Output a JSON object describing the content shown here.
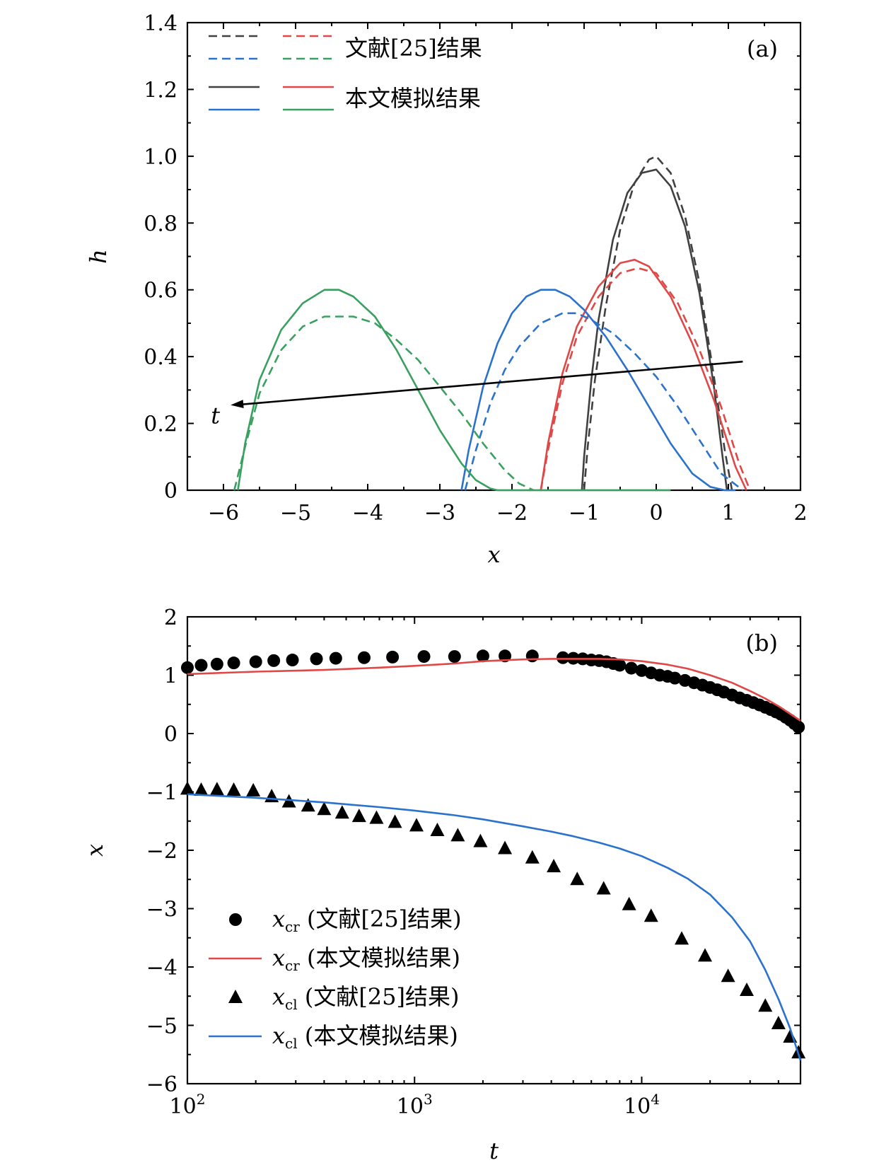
{
  "chart_data": [
    {
      "type": "line",
      "panel_label": "(a)",
      "xlabel": "x",
      "ylabel": "h",
      "xlim": [
        -6.5,
        2
      ],
      "ylim": [
        0,
        1.4
      ],
      "xticks": [
        -6,
        -5,
        -4,
        -3,
        -2,
        -1,
        0,
        1,
        2
      ],
      "xtick_labels": [
        "−6",
        "−5",
        "−4",
        "−3",
        "−2",
        "−1",
        "0",
        "1",
        "2"
      ],
      "yticks": [
        0,
        0.2,
        0.4,
        0.6,
        0.8,
        1.0,
        1.2,
        1.4
      ],
      "ytick_labels": [
        "0",
        "0.2",
        "0.4",
        "0.6",
        "0.8",
        "1.0",
        "1.2",
        "1.4"
      ],
      "legend": {
        "placement": "top-left",
        "ref_label": "文献[25]结果",
        "sim_label": "本文模拟结果"
      },
      "colors": {
        "black": "#404040",
        "red": "#e04848",
        "blue": "#2a72cc",
        "green": "#3aa060"
      },
      "series": [
        {
          "color": "black",
          "style": "solid",
          "x": [
            -1.03,
            -1.0,
            -0.9,
            -0.8,
            -0.6,
            -0.4,
            -0.2,
            0.0,
            0.2,
            0.4,
            0.6,
            0.8,
            0.92,
            0.98
          ],
          "y": [
            0,
            0.1,
            0.33,
            0.51,
            0.75,
            0.89,
            0.95,
            0.96,
            0.91,
            0.79,
            0.59,
            0.31,
            0.1,
            0
          ]
        },
        {
          "color": "black",
          "style": "dashed",
          "x": [
            -1.0,
            -0.95,
            -0.85,
            -0.7,
            -0.5,
            -0.3,
            -0.1,
            0.0,
            0.2,
            0.4,
            0.6,
            0.8,
            0.95,
            1.05
          ],
          "y": [
            0,
            0.13,
            0.33,
            0.55,
            0.78,
            0.92,
            0.99,
            1.0,
            0.95,
            0.82,
            0.62,
            0.34,
            0.12,
            0
          ]
        },
        {
          "color": "red",
          "style": "solid",
          "x": [
            -1.6,
            -1.5,
            -1.3,
            -1.1,
            -0.8,
            -0.5,
            -0.3,
            -0.1,
            0.2,
            0.5,
            0.8,
            1.1,
            1.25
          ],
          "y": [
            0,
            0.14,
            0.35,
            0.49,
            0.61,
            0.68,
            0.69,
            0.67,
            0.58,
            0.44,
            0.27,
            0.07,
            0
          ]
        },
        {
          "color": "red",
          "style": "dashed",
          "x": [
            -1.6,
            -1.5,
            -1.3,
            -1.1,
            -0.8,
            -0.5,
            -0.25,
            0.0,
            0.3,
            0.6,
            0.9,
            1.15,
            1.3
          ],
          "y": [
            0,
            0.12,
            0.32,
            0.46,
            0.58,
            0.65,
            0.665,
            0.65,
            0.56,
            0.42,
            0.25,
            0.08,
            0
          ]
        },
        {
          "color": "blue",
          "style": "solid",
          "x": [
            -2.7,
            -2.6,
            -2.4,
            -2.2,
            -2.0,
            -1.8,
            -1.6,
            -1.4,
            -1.2,
            -1.0,
            -0.7,
            -0.4,
            -0.1,
            0.2,
            0.5,
            0.75,
            0.95,
            1.1
          ],
          "y": [
            0,
            0.12,
            0.31,
            0.44,
            0.53,
            0.58,
            0.6,
            0.6,
            0.58,
            0.54,
            0.46,
            0.36,
            0.25,
            0.14,
            0.05,
            0.01,
            0,
            0
          ]
        },
        {
          "color": "blue",
          "style": "dashed",
          "x": [
            -2.65,
            -2.5,
            -2.3,
            -2.1,
            -1.9,
            -1.6,
            -1.3,
            -1.1,
            -0.9,
            -0.6,
            -0.3,
            0.0,
            0.3,
            0.6,
            0.9,
            1.2
          ],
          "y": [
            0,
            0.12,
            0.26,
            0.36,
            0.43,
            0.5,
            0.53,
            0.53,
            0.51,
            0.47,
            0.41,
            0.34,
            0.25,
            0.15,
            0.05,
            0
          ]
        },
        {
          "color": "green",
          "style": "solid",
          "x": [
            -5.8,
            -5.7,
            -5.5,
            -5.2,
            -4.9,
            -4.6,
            -4.4,
            -4.2,
            -3.9,
            -3.6,
            -3.3,
            -3.0,
            -2.7,
            -2.5,
            -2.3,
            -2.2,
            -1.5,
            -0.5,
            0.2
          ],
          "y": [
            0,
            0.14,
            0.33,
            0.48,
            0.56,
            0.6,
            0.6,
            0.58,
            0.52,
            0.42,
            0.3,
            0.18,
            0.08,
            0.03,
            0.005,
            0,
            0,
            0,
            0
          ]
        },
        {
          "color": "green",
          "style": "dashed",
          "x": [
            -5.85,
            -5.7,
            -5.5,
            -5.2,
            -4.9,
            -4.6,
            -4.2,
            -3.9,
            -3.6,
            -3.3,
            -3.0,
            -2.7,
            -2.4,
            -2.1,
            -1.9,
            -1.7
          ],
          "y": [
            0,
            0.13,
            0.29,
            0.42,
            0.49,
            0.52,
            0.52,
            0.5,
            0.45,
            0.39,
            0.31,
            0.23,
            0.14,
            0.06,
            0.02,
            0
          ]
        }
      ],
      "annotation": {
        "text": "t",
        "arrow_from": [
          1.2,
          0.385
        ],
        "arrow_to": [
          -5.9,
          0.255
        ]
      }
    },
    {
      "type": "scatter",
      "panel_label": "(b)",
      "xlabel": "t",
      "ylabel": "x",
      "xscale": "log",
      "xlim": [
        100,
        50000
      ],
      "ylim": [
        -6,
        2
      ],
      "xticks": [
        100,
        1000,
        10000
      ],
      "xtick_labels": [
        {
          "base": "10",
          "exp": "2"
        },
        {
          "base": "10",
          "exp": "3"
        },
        {
          "base": "10",
          "exp": "4"
        }
      ],
      "yticks": [
        -6,
        -5,
        -4,
        -3,
        -2,
        -1,
        0,
        1,
        2
      ],
      "ytick_labels": [
        "−6",
        "−5",
        "−4",
        "−3",
        "−2",
        "−1",
        "0",
        "1",
        "2"
      ],
      "legend": {
        "placement": "bottom-left",
        "entries": [
          {
            "var": "x",
            "sub": "cr",
            "text": "(文献[25]结果)",
            "marker": "circle"
          },
          {
            "var": "x",
            "sub": "cr",
            "text": "(本文模拟结果)",
            "marker": "line-red"
          },
          {
            "var": "x",
            "sub": "cl",
            "text": "(文献[25]结果)",
            "marker": "triangle"
          },
          {
            "var": "x",
            "sub": "cl",
            "text": "(本文模拟结果)",
            "marker": "line-blue"
          }
        ]
      },
      "colors": {
        "red": "#e04848",
        "blue": "#2a72cc",
        "marker": "#000000"
      },
      "series": [
        {
          "name": "xcr-ref",
          "style": "circle",
          "t": [
            100,
            115,
            135,
            160,
            200,
            240,
            290,
            370,
            450,
            600,
            800,
            1100,
            1500,
            2000,
            2500,
            3300,
            4500,
            5000,
            5500,
            6000,
            6500,
            7000,
            7500,
            8000,
            9000,
            10000,
            11000,
            12000,
            13000,
            14000,
            15500,
            17000,
            18500,
            20000,
            21500,
            23000,
            25000,
            27000,
            29000,
            31000,
            33000,
            35000,
            37000,
            39000,
            41000,
            43000,
            45000,
            47000,
            49000
          ],
          "x": [
            1.13,
            1.17,
            1.19,
            1.21,
            1.23,
            1.25,
            1.26,
            1.28,
            1.29,
            1.3,
            1.31,
            1.32,
            1.32,
            1.33,
            1.33,
            1.33,
            1.3,
            1.29,
            1.28,
            1.26,
            1.25,
            1.23,
            1.2,
            1.17,
            1.12,
            1.08,
            1.04,
            1.0,
            0.98,
            0.95,
            0.91,
            0.87,
            0.83,
            0.79,
            0.75,
            0.71,
            0.66,
            0.61,
            0.57,
            0.53,
            0.49,
            0.45,
            0.41,
            0.37,
            0.33,
            0.28,
            0.23,
            0.17,
            0.11
          ]
        },
        {
          "name": "xcr-sim",
          "style": "line-red",
          "t": [
            100,
            200,
            400,
            700,
            1000,
            1500,
            2000,
            3000,
            4000,
            5000,
            6500,
            8000,
            10000,
            13000,
            16000,
            20000,
            25000,
            30000,
            35000,
            40000,
            45000,
            50000
          ],
          "x": [
            1.02,
            1.06,
            1.09,
            1.13,
            1.16,
            1.2,
            1.24,
            1.27,
            1.28,
            1.28,
            1.28,
            1.27,
            1.24,
            1.18,
            1.11,
            1.0,
            0.87,
            0.73,
            0.6,
            0.47,
            0.34,
            0.22
          ]
        },
        {
          "name": "xcl-ref",
          "style": "triangle",
          "t": [
            100,
            115,
            135,
            160,
            195,
            235,
            280,
            340,
            400,
            480,
            570,
            680,
            820,
            1020,
            1260,
            1550,
            1950,
            2500,
            3300,
            4100,
            5200,
            6800,
            8800,
            11000,
            15000,
            19000,
            24000,
            29000,
            35000,
            40000,
            45000,
            49000
          ],
          "x": [
            -0.95,
            -0.97,
            -0.96,
            -0.97,
            -0.98,
            -1.08,
            -1.17,
            -1.24,
            -1.3,
            -1.36,
            -1.42,
            -1.45,
            -1.52,
            -1.58,
            -1.66,
            -1.75,
            -1.85,
            -1.97,
            -2.13,
            -2.28,
            -2.5,
            -2.66,
            -2.93,
            -3.13,
            -3.52,
            -3.81,
            -4.16,
            -4.4,
            -4.67,
            -4.97,
            -5.2,
            -5.47
          ]
        },
        {
          "name": "xcl-sim",
          "style": "line-blue",
          "t": [
            100,
            200,
            400,
            700,
            1000,
            1500,
            2000,
            3000,
            4000,
            5000,
            6500,
            8000,
            10000,
            13000,
            16000,
            20000,
            25000,
            30000,
            35000,
            40000,
            45000,
            50000
          ],
          "x": [
            -1.04,
            -1.1,
            -1.18,
            -1.26,
            -1.32,
            -1.4,
            -1.47,
            -1.59,
            -1.68,
            -1.76,
            -1.87,
            -1.97,
            -2.1,
            -2.3,
            -2.49,
            -2.76,
            -3.15,
            -3.56,
            -4.05,
            -4.55,
            -5.05,
            -5.6
          ]
        }
      ]
    }
  ]
}
